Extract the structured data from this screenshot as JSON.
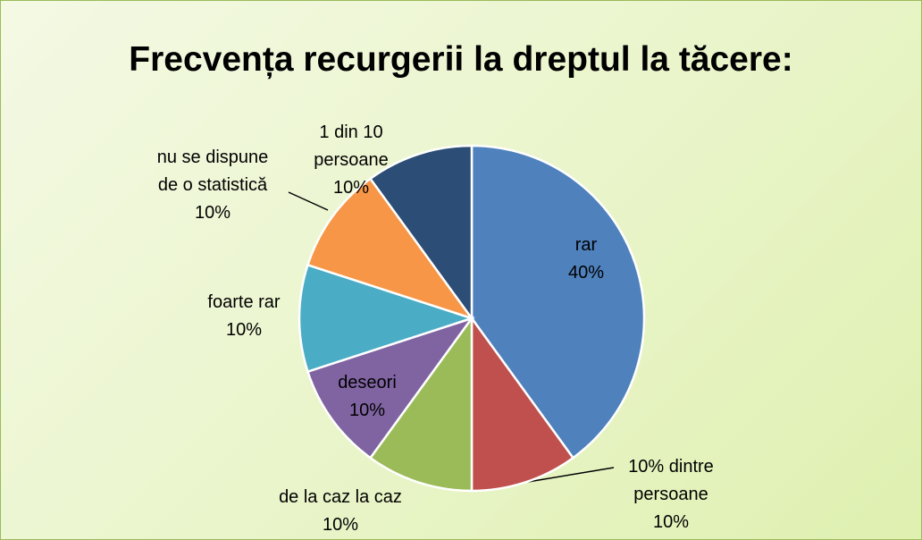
{
  "chart_data": {
    "type": "pie",
    "title": "Frecvența recurgerii la dreptul la tăcere:",
    "categories": [
      "rar",
      "10% dintre persoane",
      "de la caz la caz",
      "deseori",
      "foarte rar",
      "nu se dispune de o statistică",
      "1 din 10 persoane"
    ],
    "values": [
      40,
      10,
      10,
      10,
      10,
      10,
      10
    ],
    "value_labels": [
      "40%",
      "10%",
      "10%",
      "10%",
      "10%",
      "10%",
      "10%"
    ],
    "colors": [
      "#4f81bd",
      "#c0504d",
      "#9bbb59",
      "#8064a2",
      "#4bacc6",
      "#f79646",
      "#2c4d75"
    ]
  }
}
